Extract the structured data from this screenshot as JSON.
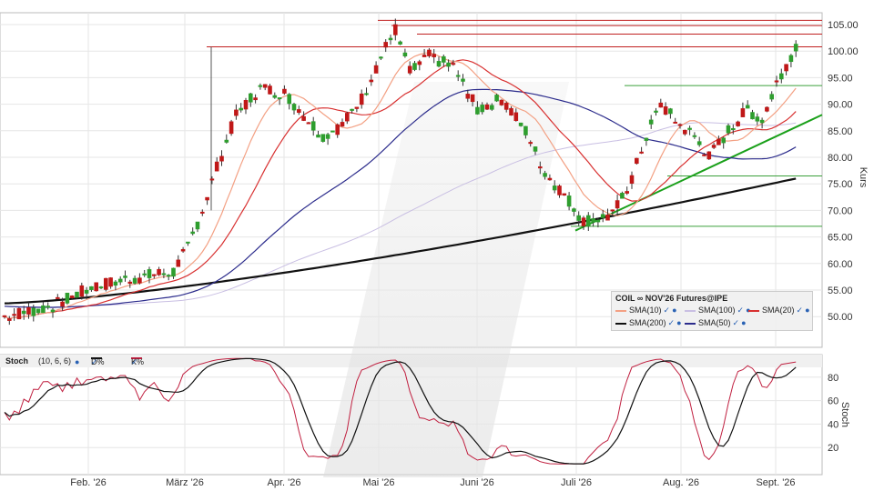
{
  "chart_data": [
    {
      "type": "candlestick",
      "ylabel": "Kurs",
      "ylim": [
        45,
        107
      ],
      "yticks": [
        "50.00",
        "55.00",
        "60.00",
        "65.00",
        "70.00",
        "75.00",
        "80.00",
        "85.00",
        "90.00",
        "95.00",
        "100.00",
        "105.00"
      ],
      "xticks": [
        "Feb. '26",
        "März '26",
        "Apr. '26",
        "Mai '26",
        "Juni '26",
        "Juli '26",
        "Aug. '26",
        "Sept. '26"
      ],
      "legend": {
        "title": "COIL ∞ NOV'26 Futures@IPE",
        "items": [
          "SMA(10)",
          "SMA(100)",
          "SMA(20)",
          "SMA(200)",
          "SMA(50)"
        ]
      },
      "colors": {
        "up": "#2e9e2e",
        "down": "#c01818",
        "sma10": "#f3a083",
        "sma20": "#d83030",
        "sma50": "#2c2c8c",
        "sma100": "#c9bfe3",
        "sma200": "#111111",
        "resistance": "#c02020",
        "support": "#3aa03a",
        "trend": "#1aa01a"
      },
      "resistance_levels": [
        105.8,
        104.8,
        103.2,
        100.8
      ],
      "support_levels": [
        93.5,
        76.5,
        67.0
      ],
      "trendline": {
        "from": {
          "date": "Juli '26",
          "value": 66.2
        },
        "to": {
          "date": "Sept. '26",
          "value": 88.0
        }
      },
      "sma200_end": 76.0,
      "sma50_end": 85.3,
      "last_close": 101.2
    },
    {
      "type": "line",
      "title": "Stoch",
      "params": "(10, 6, 6)",
      "ylabel": "Stoch",
      "ylim": [
        0,
        100
      ],
      "yticks": [
        "20",
        "40",
        "60",
        "80"
      ],
      "series": [
        {
          "name": "D%",
          "color": "#111111"
        },
        {
          "name": "K%",
          "color": "#c02040"
        }
      ]
    }
  ]
}
